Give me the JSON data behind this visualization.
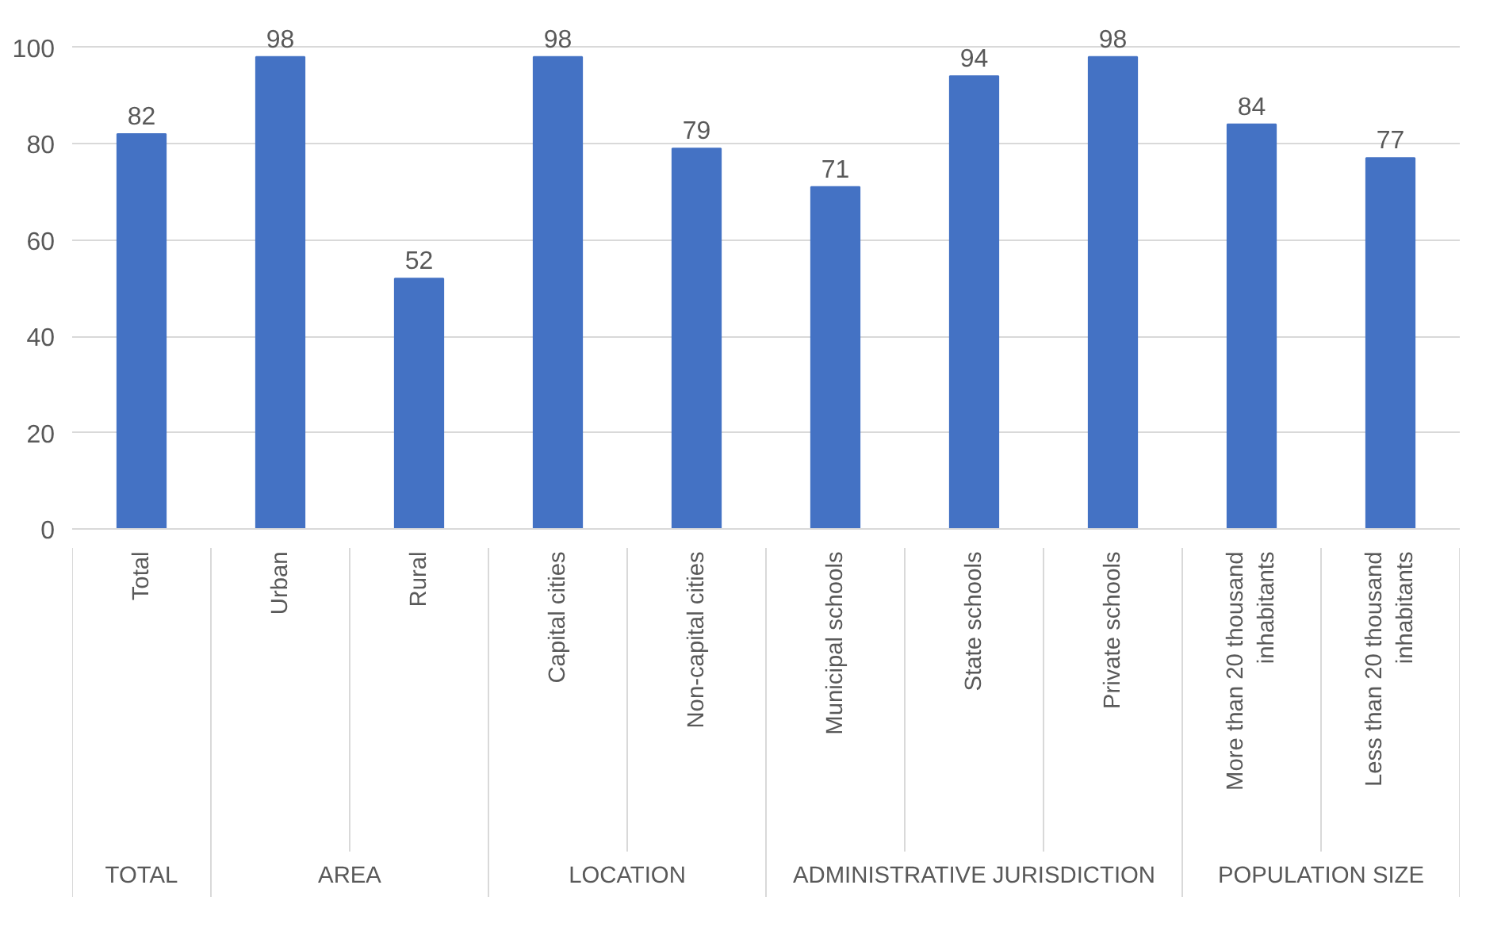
{
  "chart_data": {
    "type": "bar",
    "categories": [
      "Total",
      "Urban",
      "Rural",
      "Capital cities",
      "Non-capital cities",
      "Municipal schools",
      "State schools",
      "Private schools",
      "More than 20 thousand inhabitants",
      "Less than 20 thousand inhabitants"
    ],
    "values": [
      82,
      98,
      52,
      98,
      79,
      71,
      94,
      98,
      84,
      77
    ],
    "color": "#4472c4",
    "ylim": [
      0,
      100
    ],
    "yticks": [
      0,
      20,
      40,
      60,
      80,
      100
    ],
    "grid": "y",
    "data_labels": true,
    "annotations": [
      "TOTAL",
      "AREA",
      "LOCATION",
      "ADMINISTRATIVE JURISDICTION",
      "POPULATION SIZE"
    ]
  }
}
